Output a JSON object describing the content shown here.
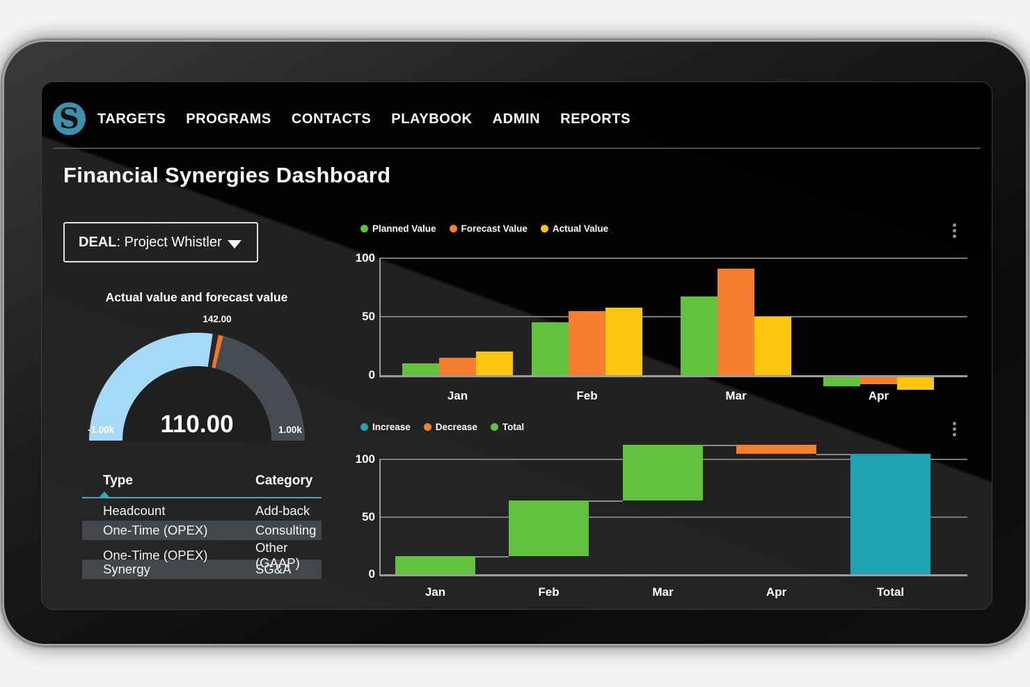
{
  "nav": {
    "logo_letter": "S",
    "items": [
      {
        "label": "TARGETS"
      },
      {
        "label": "PROGRAMS"
      },
      {
        "label": "CONTACTS"
      },
      {
        "label": "PLAYBOOK"
      },
      {
        "label": "ADMIN"
      },
      {
        "label": "REPORTS",
        "active": true
      }
    ]
  },
  "page": {
    "title": "Financial Synergies Dashboard"
  },
  "deal_selector": {
    "label": "DEAL",
    "separator": ": ",
    "value": "Project Whistler",
    "dropdown_icon": "caret-down"
  },
  "gauge": {
    "title": "Actual value and forecast value",
    "value": 110,
    "value_display": "110.00",
    "marker": 142,
    "marker_label": "142.00",
    "min": -1000,
    "max": 1000,
    "min_label": "-1.00k",
    "max_label": "1.00k",
    "colors": {
      "fill": "#a6d9f5",
      "rest": "#474c52",
      "marker": "#f1762c",
      "gap": "#25282b"
    }
  },
  "table": {
    "columns": [
      "Type",
      "Category"
    ],
    "sorted_by": "Type",
    "sort_direction": "asc",
    "rows": [
      [
        "Headcount",
        "Add-back"
      ],
      [
        "One-Time (OPEX)",
        "Consulting"
      ],
      [
        "One-Time (OPEX)",
        "Other (GAAP)"
      ],
      [
        "Synergy",
        "SG&A"
      ]
    ]
  },
  "chart_data": [
    {
      "type": "bar",
      "categories": [
        "Jan",
        "Feb",
        "Mar",
        "Apr"
      ],
      "series": [
        {
          "name": "Planned Value",
          "color": "#62c13d",
          "values": [
            10,
            45,
            67,
            -8
          ]
        },
        {
          "name": "Forecast Value",
          "color": "#f57f2d",
          "values": [
            15,
            55,
            91,
            -6
          ]
        },
        {
          "name": "Actual Value",
          "color": "#fcc50f",
          "values": [
            20,
            58,
            50,
            -11
          ]
        }
      ],
      "ylim": [
        -15,
        100
      ],
      "yticks": [
        0,
        50,
        100
      ],
      "grid": true,
      "legend_position": "top-left"
    },
    {
      "type": "waterfall",
      "categories": [
        "Jan",
        "Feb",
        "Mar",
        "Apr",
        "Total"
      ],
      "legend": [
        {
          "name": "Increase",
          "color": "#1fa3b2"
        },
        {
          "name": "Decrease",
          "color": "#f57f2d"
        },
        {
          "name": "Total",
          "color": "#62c13d"
        }
      ],
      "steps": [
        {
          "label": "Jan",
          "start": 0,
          "end": 16,
          "color": "#62c13d",
          "is_total": false
        },
        {
          "label": "Feb",
          "start": 16,
          "end": 64,
          "color": "#62c13d",
          "is_total": false
        },
        {
          "label": "Mar",
          "start": 64,
          "end": 113,
          "color": "#62c13d",
          "is_total": false
        },
        {
          "label": "Apr",
          "start": 113,
          "end": 105,
          "color": "#f57f2d",
          "is_total": false
        },
        {
          "label": "Total",
          "start": 0,
          "end": 105,
          "color": "#1fa3b2",
          "is_total": true
        }
      ],
      "ylim": [
        0,
        113
      ],
      "yticks": [
        0,
        50,
        100
      ],
      "grid": true,
      "legend_position": "top-left"
    }
  ],
  "icons": {
    "kebab": "vertical-ellipsis",
    "dropdown": "caret-down",
    "sort": "caret-up"
  }
}
